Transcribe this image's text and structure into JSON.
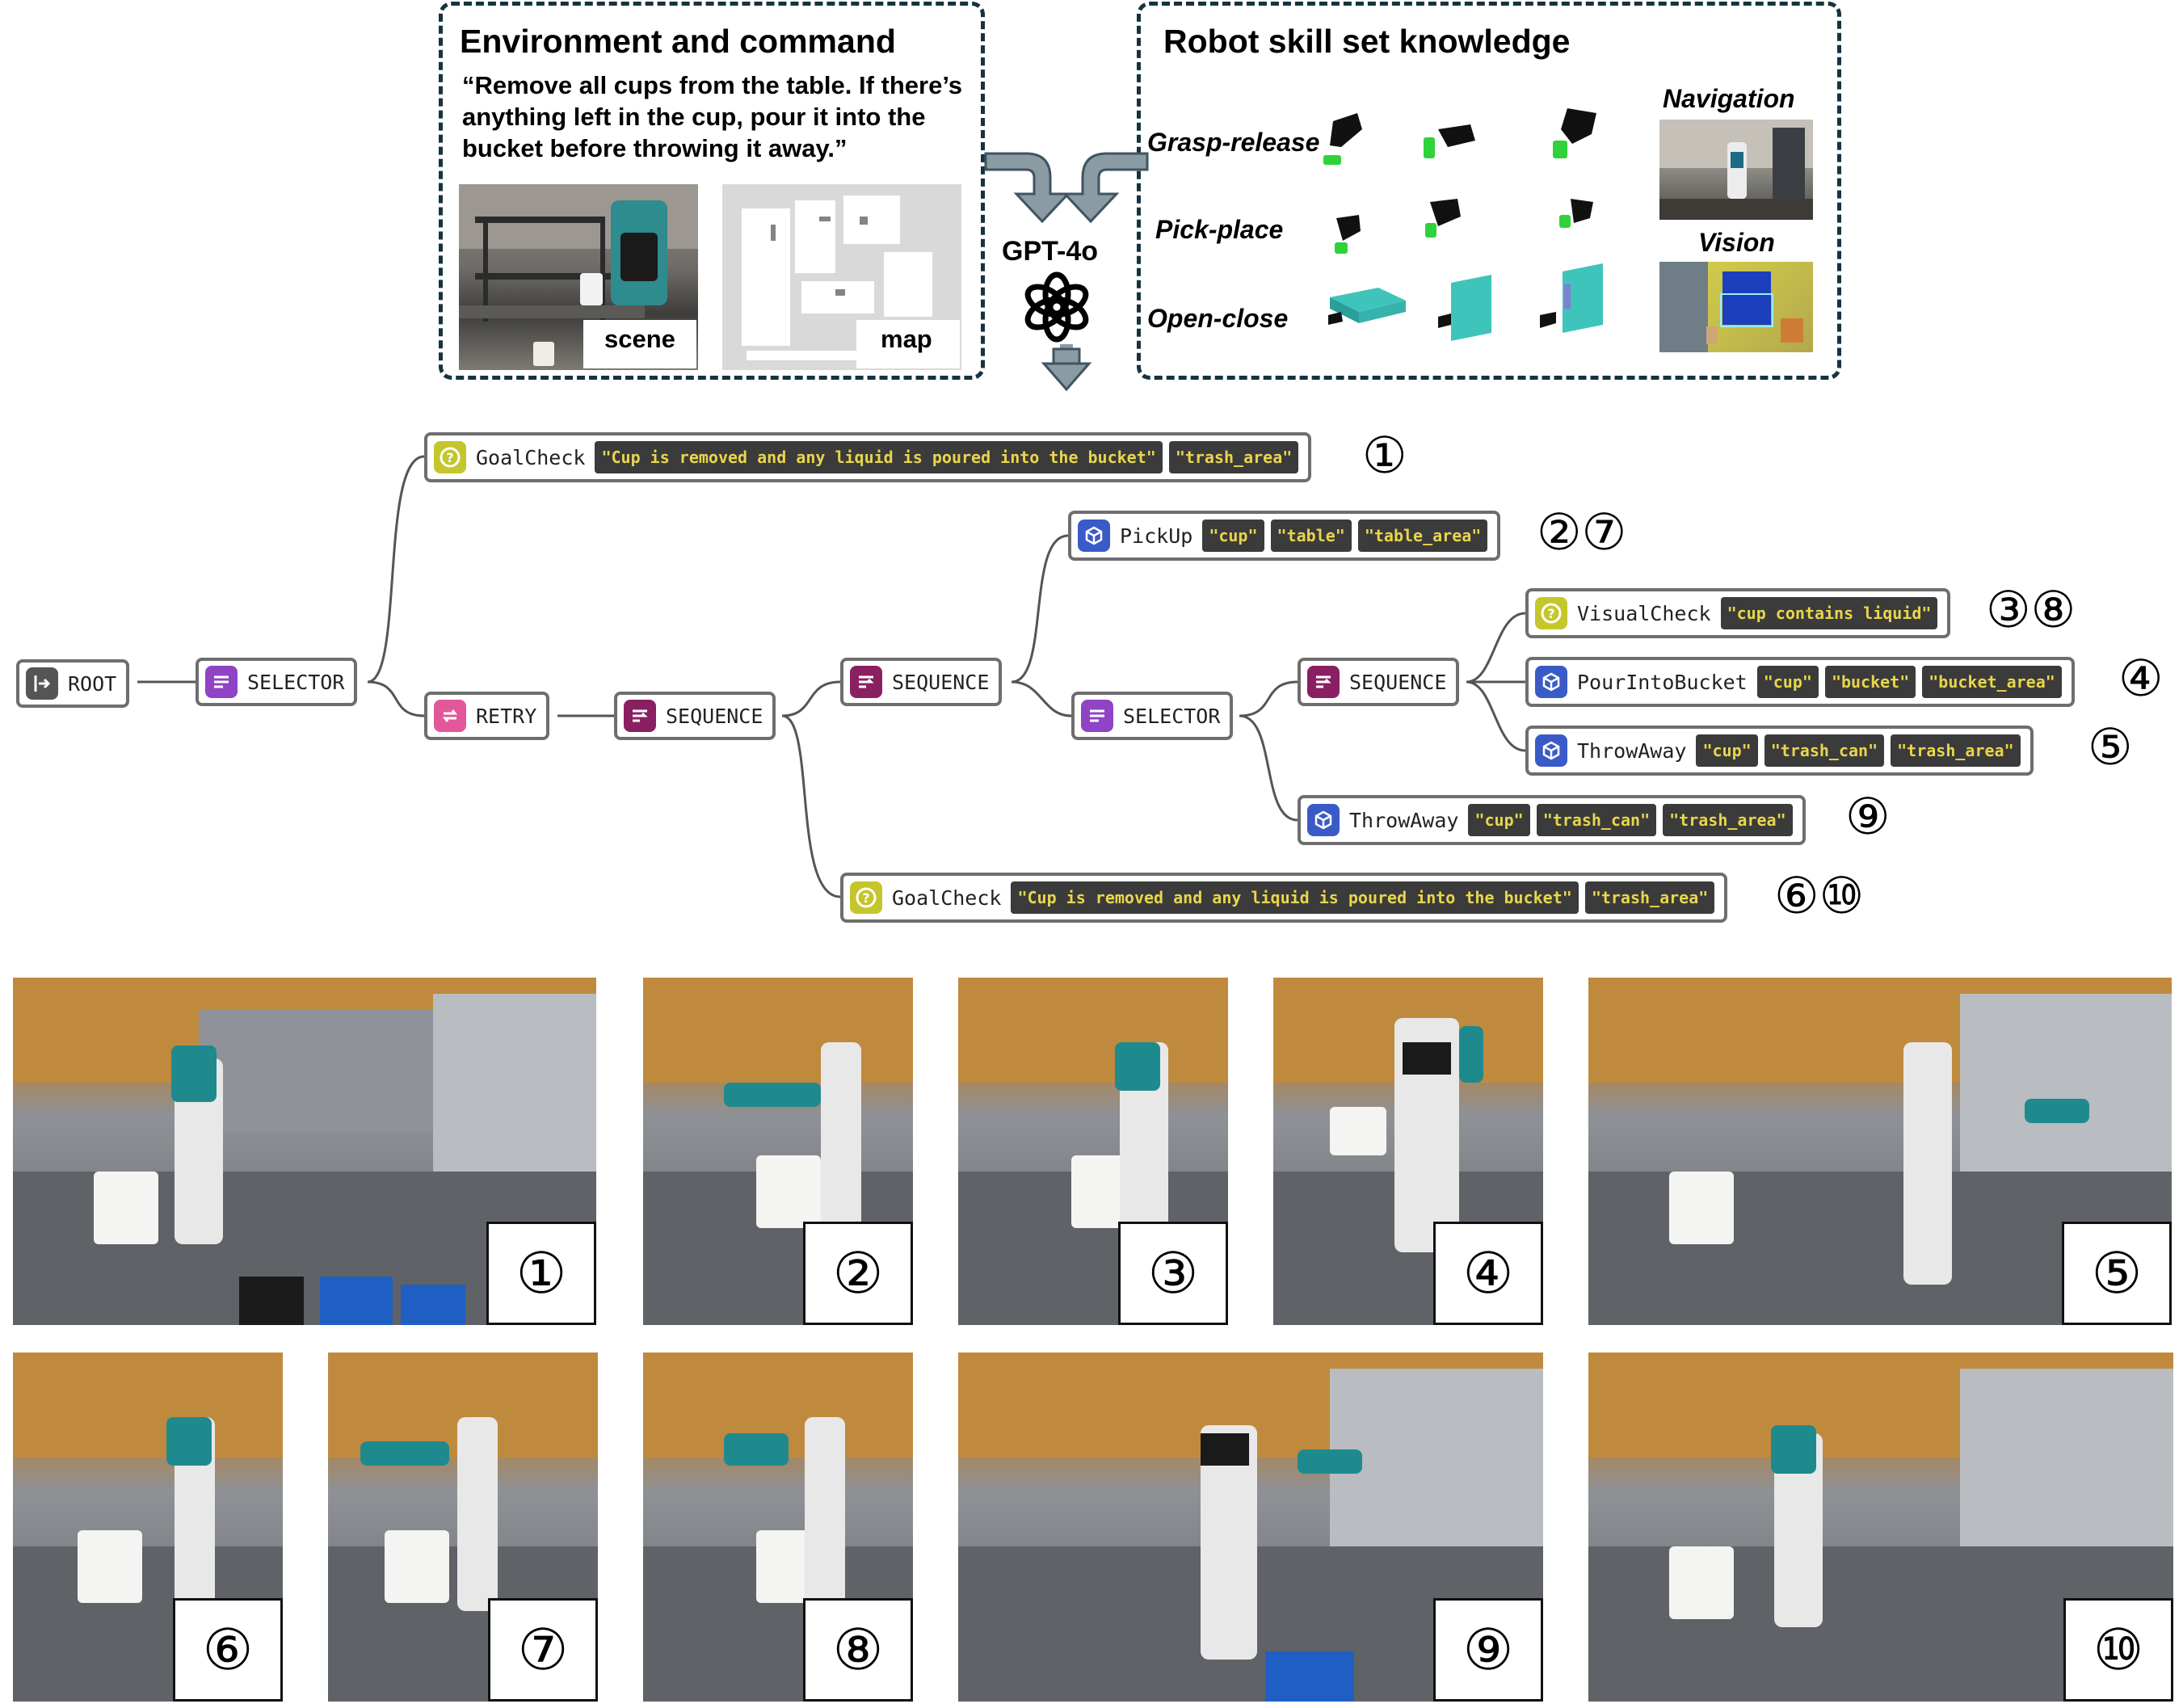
{
  "env_panel": {
    "title": "Environment and command",
    "command": "“Remove all cups from the table. If there’s anything left in the cup, pour it into the bucket before throwing it away.”",
    "scene_label": "scene",
    "map_label": "map"
  },
  "llm": {
    "label": "GPT-4o",
    "icon": "openai-logo-icon"
  },
  "skill_panel": {
    "title": "Robot skill set knowledge",
    "skills": [
      "Grasp-release",
      "Pick-place",
      "Open-close"
    ],
    "navigation_label": "Navigation",
    "vision_label": "Vision"
  },
  "tree": {
    "root": "ROOT",
    "selector_top": "SELECTOR",
    "goalcheck_top": {
      "label": "GoalCheck",
      "args": [
        "\"Cup is removed and any liquid is poured into the bucket\"",
        "\"trash_area\""
      ],
      "marker": "①"
    },
    "retry": "RETRY",
    "sequence_main": "SEQUENCE",
    "sequence_inner": "SEQUENCE",
    "pickup": {
      "label": "PickUp",
      "args": [
        "\"cup\"",
        "\"table\"",
        "\"table_area\""
      ],
      "marker": "②⑦"
    },
    "selector_inner": "SELECTOR",
    "sequence_check": "SEQUENCE",
    "visualcheck": {
      "label": "VisualCheck",
      "args": [
        "\"cup contains liquid\""
      ],
      "marker": "③⑧"
    },
    "pourintobucket": {
      "label": "PourIntoBucket",
      "args": [
        "\"cup\"",
        "\"bucket\"",
        "\"bucket_area\""
      ],
      "marker": "④"
    },
    "throwaway_a": {
      "label": "ThrowAway",
      "args": [
        "\"cup\"",
        "\"trash_can\"",
        "\"trash_area\""
      ],
      "marker": "⑤"
    },
    "throwaway_b": {
      "label": "ThrowAway",
      "args": [
        "\"cup\"",
        "\"trash_can\"",
        "\"trash_area\""
      ],
      "marker": "⑨"
    },
    "goalcheck_bottom": {
      "label": "GoalCheck",
      "args": [
        "\"Cup is removed and any liquid is poured into the bucket\"",
        "\"trash_area\""
      ],
      "marker": "⑥⑩"
    }
  },
  "colors": {
    "root": "#555555",
    "selector": "#8e44c4",
    "retry": "#e2579a",
    "sequence": "#8a2061",
    "action": "#3a5bc7",
    "check": "#c5c62b"
  },
  "frames": [
    "①",
    "②",
    "③",
    "④",
    "⑤",
    "⑥",
    "⑦",
    "⑧",
    "⑨",
    "⑩"
  ]
}
